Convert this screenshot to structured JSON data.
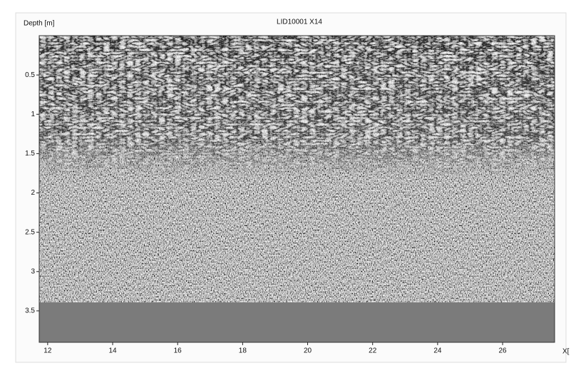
{
  "chart_data": {
    "type": "radargram",
    "title": "LID10001 X14",
    "y_label": "Depth [m]",
    "x_label": "X[",
    "xlim": [
      11.74,
      27.6
    ],
    "xticks": [
      12,
      14,
      16,
      18,
      20,
      22,
      24,
      26
    ],
    "ylim": [
      0,
      3.9
    ],
    "yticks": [
      0.5,
      1,
      1.5,
      2,
      2.5,
      3,
      3.5
    ]
  }
}
